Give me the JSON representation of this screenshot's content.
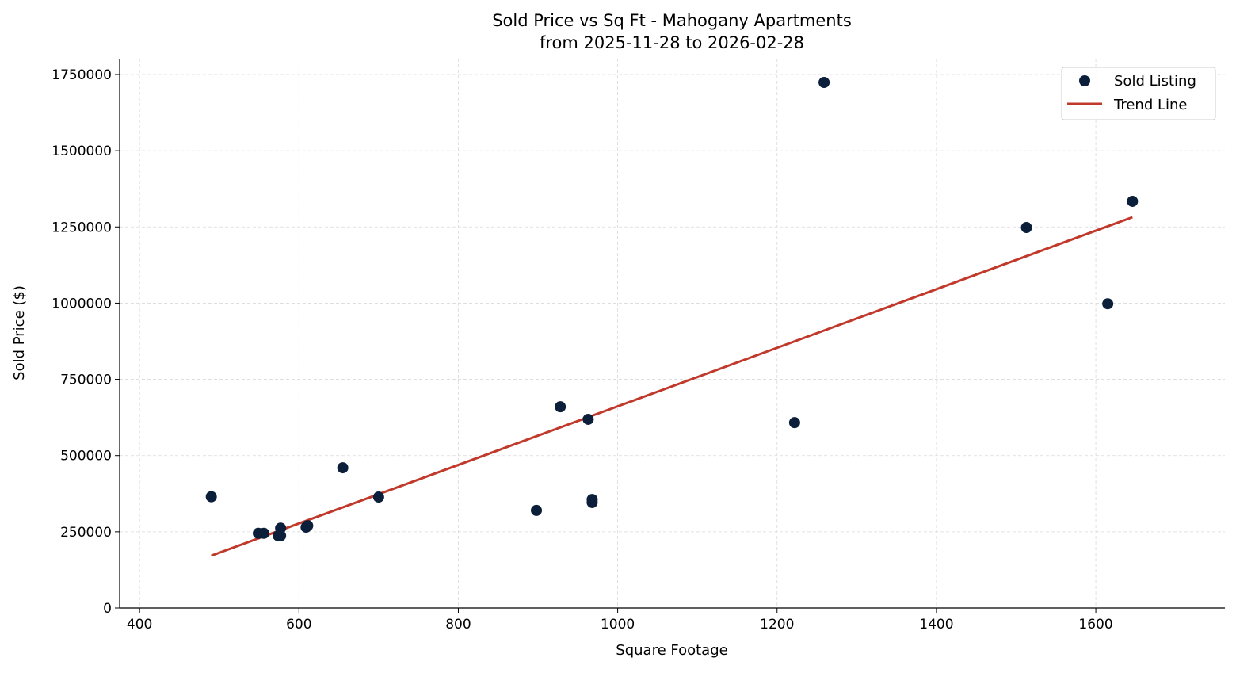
{
  "chart_data": {
    "type": "scatter",
    "title": "Sold Price vs Sq Ft - Mahogany Apartments",
    "subtitle": "from 2025-11-28 to 2026-02-28",
    "xlabel": "Square Footage",
    "ylabel": "Sold Price ($)",
    "xlim": [
      375,
      1762
    ],
    "ylim": [
      0,
      1802000
    ],
    "xticks": [
      400,
      600,
      800,
      1000,
      1200,
      1400,
      1600
    ],
    "yticks": [
      0,
      250000,
      500000,
      750000,
      1000000,
      1250000,
      1500000,
      1750000
    ],
    "grid": true,
    "legend_position": "top-right",
    "colors": {
      "points": "#0b1f3a",
      "trend": "#c0392b"
    },
    "series": [
      {
        "name": "Sold Listing",
        "type": "scatter",
        "points": [
          [
            490,
            365000
          ],
          [
            549,
            245000
          ],
          [
            556,
            245000
          ],
          [
            577,
            262000
          ],
          [
            574,
            237000
          ],
          [
            577,
            237000
          ],
          [
            609,
            265000
          ],
          [
            611,
            270000
          ],
          [
            655,
            460000
          ],
          [
            700,
            364000
          ],
          [
            898,
            320000
          ],
          [
            928,
            660000
          ],
          [
            963,
            619000
          ],
          [
            968,
            356000
          ],
          [
            968,
            346000
          ],
          [
            1222,
            608000
          ],
          [
            1259,
            1724000
          ],
          [
            1513,
            1248000
          ],
          [
            1615,
            998000
          ],
          [
            1646,
            1334000
          ]
        ]
      },
      {
        "name": "Trend Line",
        "type": "line",
        "points": [
          [
            490,
            171600
          ],
          [
            1646,
            1282000
          ]
        ]
      }
    ]
  }
}
